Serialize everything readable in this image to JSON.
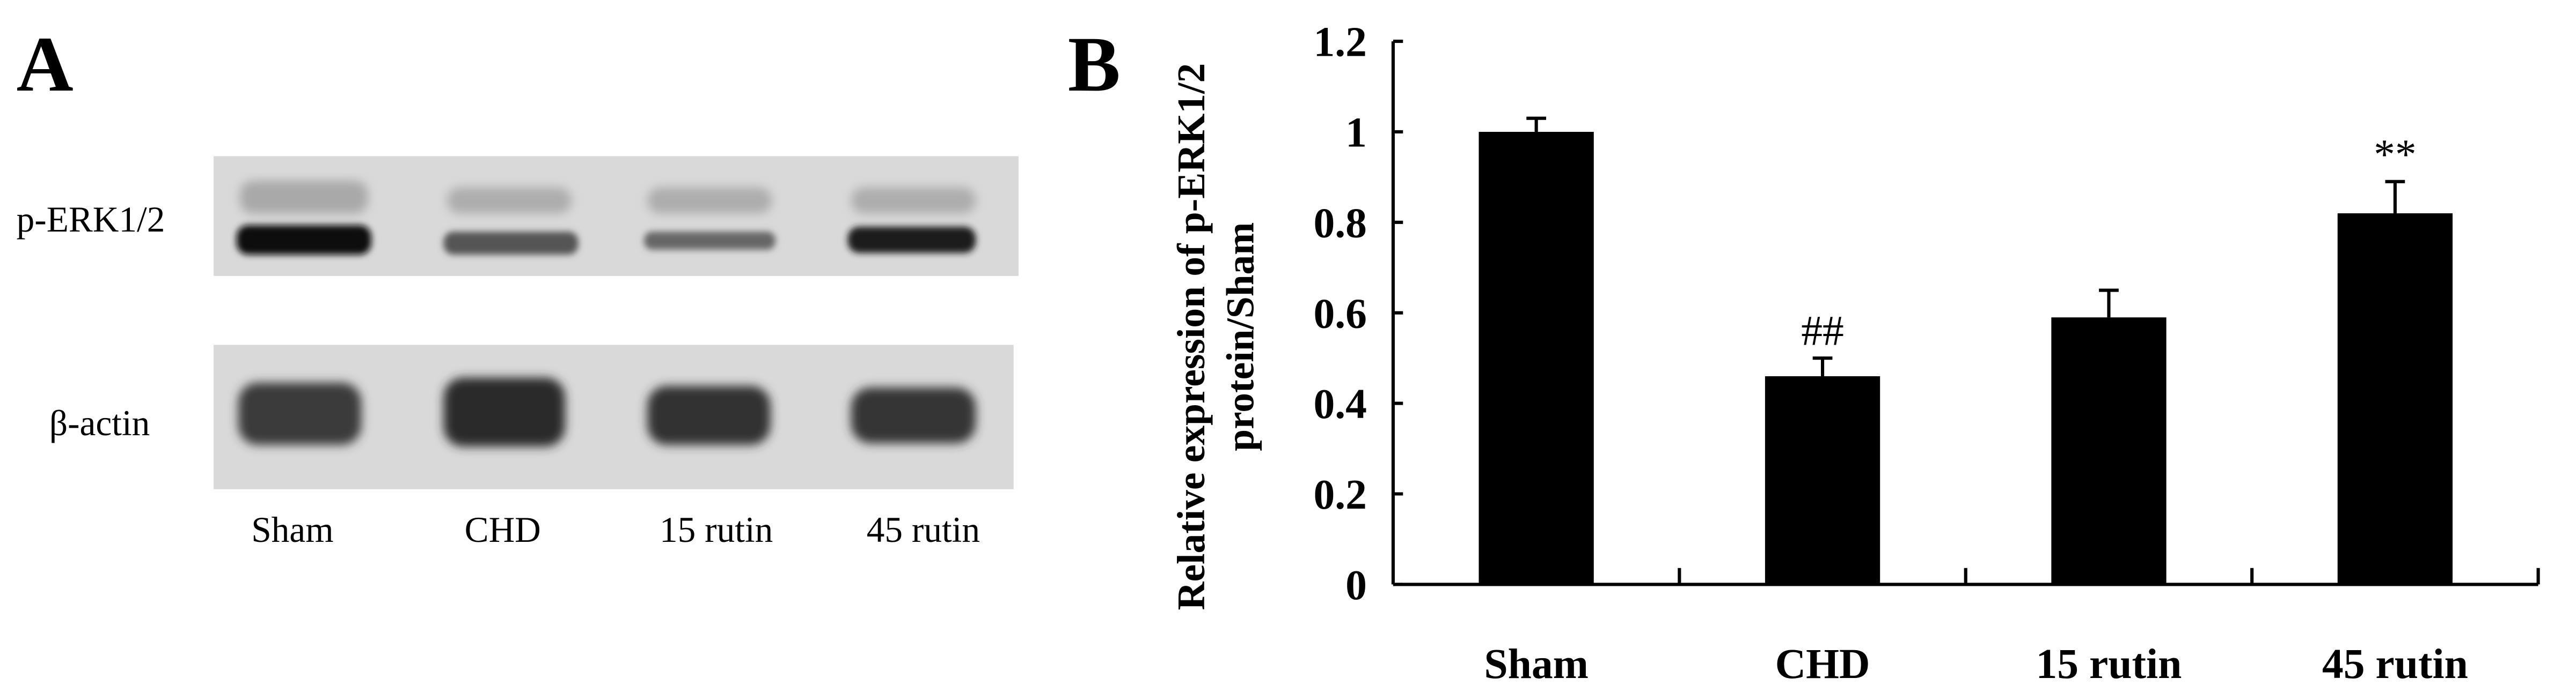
{
  "panel_a": {
    "label": "A",
    "row_labels": [
      "p-ERK1/2",
      "β-actin"
    ],
    "lane_labels": [
      "Sham",
      "CHD",
      "15 rutin",
      "45 rutin"
    ]
  },
  "panel_b": {
    "label": "B"
  },
  "chart_data": {
    "type": "bar",
    "title": "",
    "xlabel": "",
    "ylabel": "Relative expression of p-ERK1/2 protein/Sham",
    "ylabel_lines": [
      "Relative expression of p-ERK1/2",
      "protein/Sham"
    ],
    "categories": [
      "Sham",
      "CHD",
      "15 rutin",
      "45 rutin"
    ],
    "values": [
      1.0,
      0.46,
      0.59,
      0.82
    ],
    "errors": [
      0.03,
      0.04,
      0.06,
      0.07
    ],
    "annotations": [
      "",
      "##",
      "",
      "**"
    ],
    "ylim": [
      0,
      1.2
    ],
    "yticks": [
      0,
      0.2,
      0.4,
      0.6,
      0.8,
      1,
      1.2
    ],
    "ytick_labels": [
      "0",
      "0.2",
      "0.4",
      "0.6",
      "0.8",
      "1",
      "1.2"
    ],
    "bar_color": "#000000",
    "grid": false,
    "legend": "none"
  }
}
